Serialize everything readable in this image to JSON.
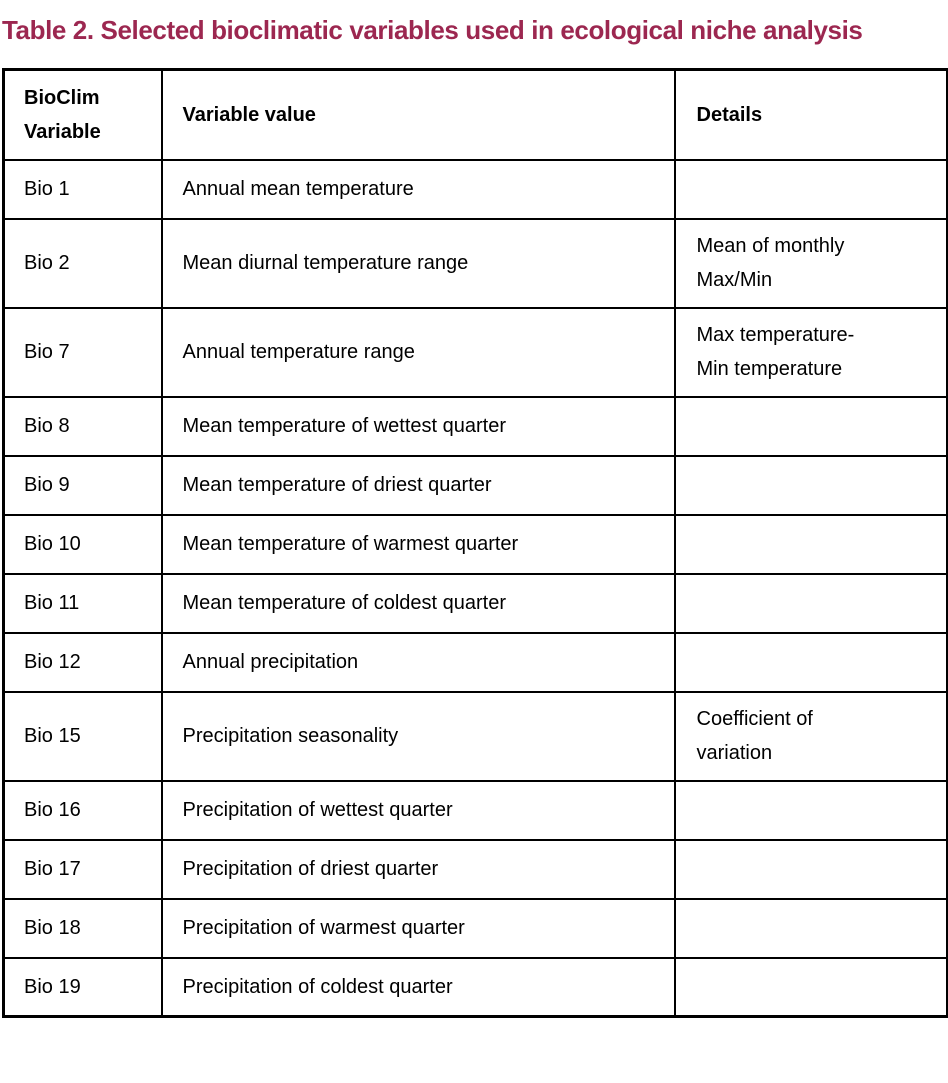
{
  "title": "Table 2. Selected bioclimatic variables used in ecological niche analysis",
  "table": {
    "headers": [
      "BioClim Variable",
      "Variable value",
      "Details"
    ],
    "rows": [
      {
        "variable": "Bio 1",
        "value": "Annual mean temperature",
        "details": ""
      },
      {
        "variable": "Bio 2",
        "value": "Mean diurnal temperature range",
        "details": "Mean of monthly Max/Min"
      },
      {
        "variable": "Bio 7",
        "value": "Annual temperature range",
        "details": "Max temperature- Min temperature"
      },
      {
        "variable": "Bio 8",
        "value": "Mean temperature of wettest quarter",
        "details": ""
      },
      {
        "variable": "Bio 9",
        "value": "Mean temperature of driest quarter",
        "details": ""
      },
      {
        "variable": "Bio 10",
        "value": "Mean temperature of warmest quarter",
        "details": ""
      },
      {
        "variable": "Bio 11",
        "value": "Mean temperature of coldest quarter",
        "details": ""
      },
      {
        "variable": "Bio 12",
        "value": "Annual precipitation",
        "details": ""
      },
      {
        "variable": "Bio 15",
        "value": "Precipitation seasonality",
        "details": "Coefficient of variation"
      },
      {
        "variable": "Bio 16",
        "value": "Precipitation of wettest quarter",
        "details": ""
      },
      {
        "variable": "Bio 17",
        "value": "Precipitation of driest quarter",
        "details": ""
      },
      {
        "variable": "Bio 18",
        "value": "Precipitation of warmest quarter",
        "details": ""
      },
      {
        "variable": "Bio 19",
        "value": "Precipitation of coldest quarter",
        "details": ""
      }
    ]
  },
  "colors": {
    "title": "#9c2750",
    "border": "#000000",
    "text": "#000000",
    "background": "#ffffff"
  }
}
